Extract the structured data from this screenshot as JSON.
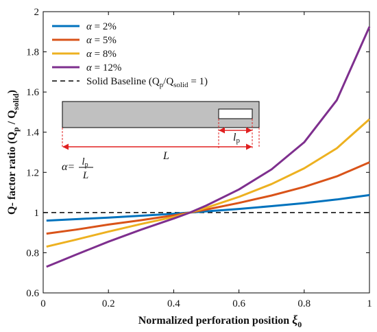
{
  "chart_data": {
    "type": "line",
    "xlabel_main": "Normalized perforation position ",
    "xlabel_symbol": "ξ",
    "xlabel_sub": "0",
    "ylabel": {
      "prefix": "Q- factor ratio (Q",
      "sub1": "p",
      "mid": " / Q",
      "sub2": "solid",
      "suffix": ")"
    },
    "xlim": [
      0,
      1
    ],
    "ylim": [
      0.6,
      2.0
    ],
    "xticks": [
      "0",
      "0.2",
      "0.4",
      "0.6",
      "0.8",
      "1"
    ],
    "yticks": [
      "0.6",
      "0.8",
      "1",
      "1.2",
      "1.4",
      "1.6",
      "1.8",
      "2"
    ],
    "legend_position": "top-left",
    "series": [
      {
        "name": "2%",
        "symbol": "α",
        "color": "#0072BD",
        "x": [
          0.01,
          0.1,
          0.2,
          0.3,
          0.4,
          0.45,
          0.5,
          0.6,
          0.7,
          0.8,
          0.9,
          1.0
        ],
        "y": [
          0.96,
          0.967,
          0.975,
          0.984,
          0.994,
          1.0,
          1.006,
          1.018,
          1.032,
          1.047,
          1.065,
          1.087
        ]
      },
      {
        "name": "5%",
        "symbol": "α",
        "color": "#D95319",
        "x": [
          0.01,
          0.1,
          0.2,
          0.3,
          0.4,
          0.45,
          0.5,
          0.6,
          0.7,
          0.8,
          0.9,
          1.0
        ],
        "y": [
          0.895,
          0.915,
          0.94,
          0.962,
          0.986,
          1.0,
          1.015,
          1.048,
          1.085,
          1.128,
          1.18,
          1.25
        ]
      },
      {
        "name": "8%",
        "symbol": "α",
        "color": "#EDB120",
        "x": [
          0.01,
          0.1,
          0.2,
          0.3,
          0.4,
          0.45,
          0.5,
          0.6,
          0.7,
          0.8,
          0.9,
          1.0
        ],
        "y": [
          0.83,
          0.865,
          0.905,
          0.943,
          0.978,
          1.0,
          1.024,
          1.078,
          1.142,
          1.22,
          1.32,
          1.465
        ]
      },
      {
        "name": "12%",
        "symbol": "α",
        "color": "#7E2F8E",
        "x": [
          0.01,
          0.1,
          0.2,
          0.3,
          0.4,
          0.45,
          0.5,
          0.6,
          0.7,
          0.8,
          0.9,
          1.0
        ],
        "y": [
          0.73,
          0.79,
          0.855,
          0.915,
          0.97,
          1.0,
          1.035,
          1.115,
          1.215,
          1.35,
          1.56,
          1.925
        ]
      }
    ],
    "baseline": {
      "name_prefix": "Solid Baseline (Q",
      "sub1": "p",
      "mid": "/Q",
      "sub2": "solid",
      "suffix": " = 1)",
      "y": 1.0,
      "color": "#000000"
    },
    "inset": {
      "length_label": "L",
      "perf_label": "l",
      "perf_sub": "p",
      "formula_lhs": "α=",
      "formula_num_main": "l",
      "formula_num_sub": "p",
      "formula_den": "L",
      "beam_color": "#C0C0C0",
      "dimension_color": "#E02020"
    }
  }
}
